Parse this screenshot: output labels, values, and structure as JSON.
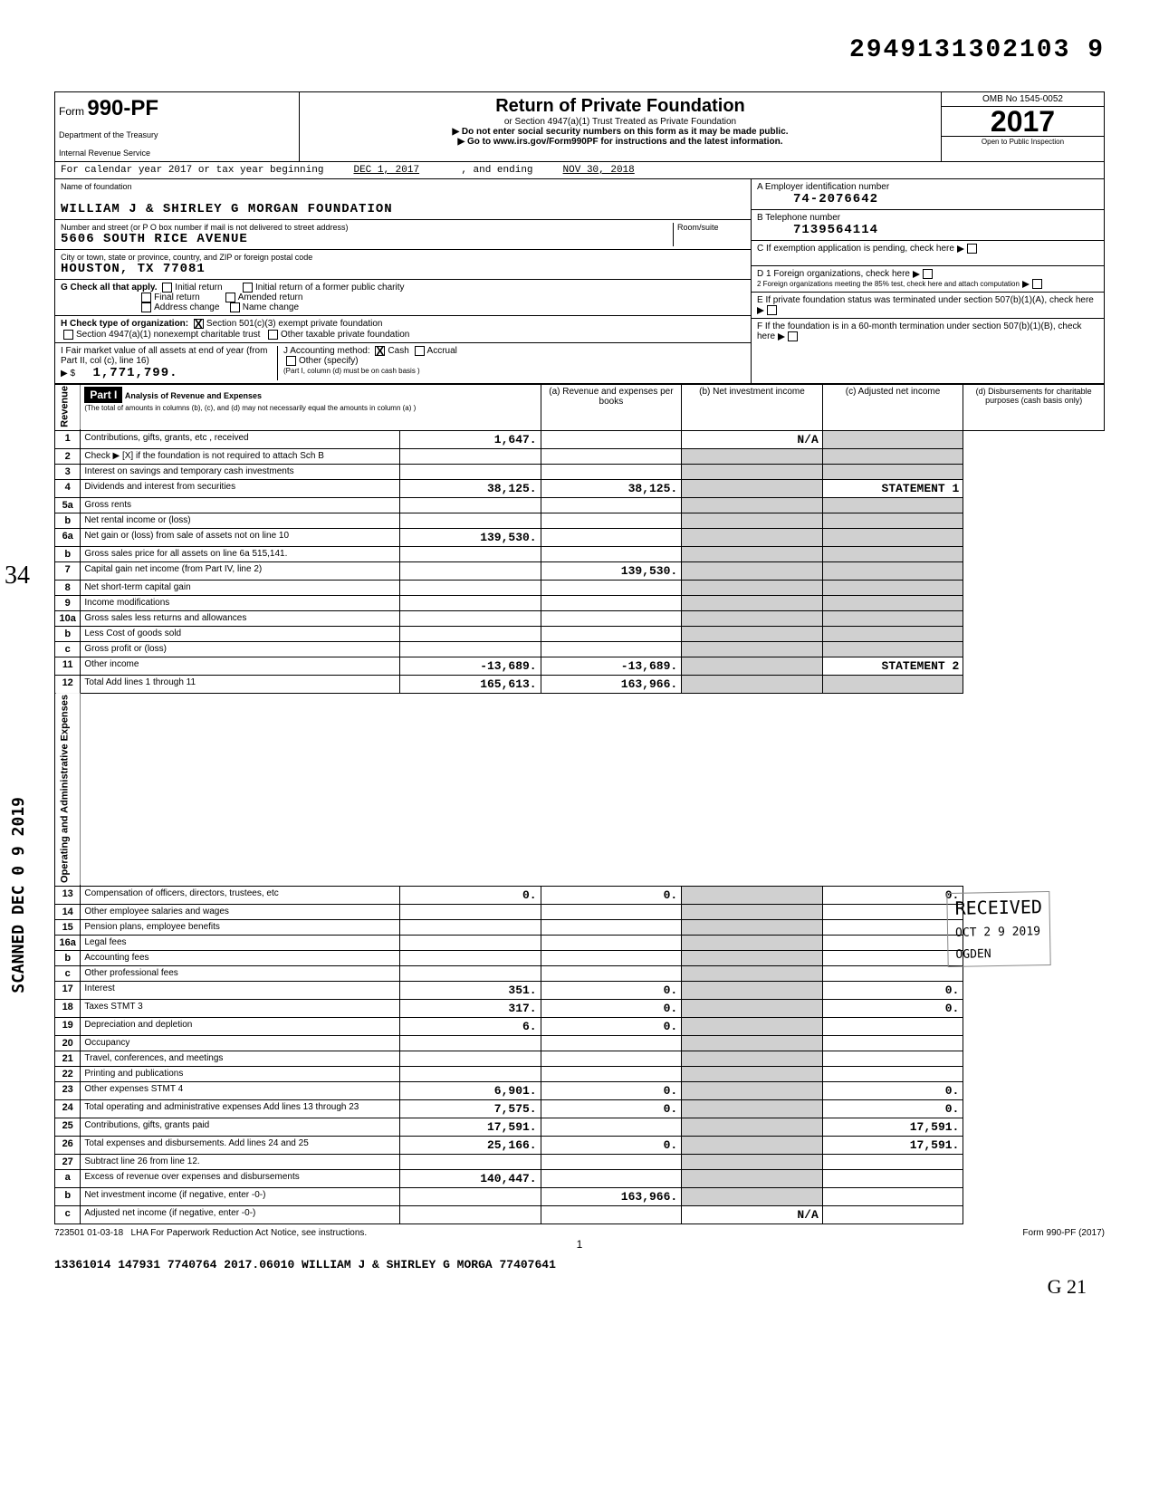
{
  "doc_number": "2949131302103 9",
  "header": {
    "form_prefix": "Form",
    "form_number": "990-PF",
    "dept1": "Department of the Treasury",
    "dept2": "Internal Revenue Service",
    "title": "Return of Private Foundation",
    "sub1": "or Section 4947(a)(1) Trust Treated as Private Foundation",
    "sub2": "▶ Do not enter social security numbers on this form as it may be made public.",
    "sub3": "▶ Go to www.irs.gov/Form990PF for instructions and the latest information.",
    "omb": "OMB No 1545-0052",
    "year": "2017",
    "inspection": "Open to Public Inspection"
  },
  "cal_year": {
    "prefix": "For calendar year 2017 or tax year beginning",
    "begin": "DEC 1, 2017",
    "mid": ", and ending",
    "end": "NOV 30, 2018"
  },
  "info": {
    "name_label": "Name of foundation",
    "name": "WILLIAM J & SHIRLEY G MORGAN FOUNDATION",
    "addr_label": "Number and street (or P O box number if mail is not delivered to street address)",
    "addr": "5606 SOUTH RICE AVENUE",
    "room_label": "Room/suite",
    "city_label": "City or town, state or province, country, and ZIP or foreign postal code",
    "city": "HOUSTON, TX   77081",
    "ein_label": "A Employer identification number",
    "ein": "74-2076642",
    "phone_label": "B Telephone number",
    "phone": "7139564114",
    "c_label": "C If exemption application is pending, check here",
    "d1_label": "D 1 Foreign organizations, check here",
    "d2_label": "2 Foreign organizations meeting the 85% test, check here and attach computation",
    "e_label": "E If private foundation status was terminated under section 507(b)(1)(A), check here",
    "f_label": "F If the foundation is in a 60-month termination under section 507(b)(1)(B), check here"
  },
  "g": {
    "label": "G Check all that apply.",
    "opts": [
      "Initial return",
      "Final return",
      "Address change",
      "Initial return of a former public charity",
      "Amended return",
      "Name change"
    ]
  },
  "h": {
    "label": "H Check type of organization:",
    "opt1": "Section 501(c)(3) exempt private foundation",
    "opt2": "Section 4947(a)(1) nonexempt charitable trust",
    "opt3": "Other taxable private foundation"
  },
  "i": {
    "label": "I Fair market value of all assets at end of year (from Part II, col (c), line 16)",
    "value": "1,771,799.",
    "j_label": "J Accounting method:",
    "j_opts": [
      "Cash",
      "Accrual",
      "Other (specify)"
    ],
    "j_note": "(Part I, column (d) must be on cash basis )"
  },
  "part1": {
    "label": "Part I",
    "title": "Analysis of Revenue and Expenses",
    "note": "(The total of amounts in columns (b), (c), and (d) may not necessarily equal the amounts in column (a) )",
    "col_a": "(a) Revenue and expenses per books",
    "col_b": "(b) Net investment income",
    "col_c": "(c) Adjusted net income",
    "col_d": "(d) Disbursements for charitable purposes (cash basis only)"
  },
  "rows": [
    {
      "n": "1",
      "desc": "Contributions, gifts, grants, etc , received",
      "a": "1,647.",
      "b": "",
      "c": "N/A",
      "d": ""
    },
    {
      "n": "2",
      "desc": "Check ▶ [X] if the foundation is not required to attach Sch B",
      "a": "",
      "b": "",
      "c": "",
      "d": ""
    },
    {
      "n": "3",
      "desc": "Interest on savings and temporary cash investments",
      "a": "",
      "b": "",
      "c": "",
      "d": ""
    },
    {
      "n": "4",
      "desc": "Dividends and interest from securities",
      "a": "38,125.",
      "b": "38,125.",
      "c": "",
      "d": "STATEMENT 1"
    },
    {
      "n": "5a",
      "desc": "Gross rents",
      "a": "",
      "b": "",
      "c": "",
      "d": ""
    },
    {
      "n": "b",
      "desc": "Net rental income or (loss)",
      "a": "",
      "b": "",
      "c": "",
      "d": ""
    },
    {
      "n": "6a",
      "desc": "Net gain or (loss) from sale of assets not on line 10",
      "a": "139,530.",
      "b": "",
      "c": "",
      "d": ""
    },
    {
      "n": "b",
      "desc": "Gross sales price for all assets on line 6a       515,141.",
      "a": "",
      "b": "",
      "c": "",
      "d": ""
    },
    {
      "n": "7",
      "desc": "Capital gain net income (from Part IV, line 2)",
      "a": "",
      "b": "139,530.",
      "c": "",
      "d": ""
    },
    {
      "n": "8",
      "desc": "Net short-term capital gain",
      "a": "",
      "b": "",
      "c": "",
      "d": ""
    },
    {
      "n": "9",
      "desc": "Income modifications",
      "a": "",
      "b": "",
      "c": "",
      "d": ""
    },
    {
      "n": "10a",
      "desc": "Gross sales less returns and allowances",
      "a": "",
      "b": "",
      "c": "",
      "d": ""
    },
    {
      "n": "b",
      "desc": "Less Cost of goods sold",
      "a": "",
      "b": "",
      "c": "",
      "d": ""
    },
    {
      "n": "c",
      "desc": "Gross profit or (loss)",
      "a": "",
      "b": "",
      "c": "",
      "d": ""
    },
    {
      "n": "11",
      "desc": "Other income",
      "a": "-13,689.",
      "b": "-13,689.",
      "c": "",
      "d": "STATEMENT 2"
    },
    {
      "n": "12",
      "desc": "Total Add lines 1 through 11",
      "a": "165,613.",
      "b": "163,966.",
      "c": "",
      "d": ""
    },
    {
      "n": "13",
      "desc": "Compensation of officers, directors, trustees, etc",
      "a": "0.",
      "b": "0.",
      "c": "",
      "d": "0."
    },
    {
      "n": "14",
      "desc": "Other employee salaries and wages",
      "a": "",
      "b": "",
      "c": "",
      "d": ""
    },
    {
      "n": "15",
      "desc": "Pension plans, employee benefits",
      "a": "",
      "b": "",
      "c": "",
      "d": ""
    },
    {
      "n": "16a",
      "desc": "Legal fees",
      "a": "",
      "b": "",
      "c": "",
      "d": ""
    },
    {
      "n": "b",
      "desc": "Accounting fees",
      "a": "",
      "b": "",
      "c": "",
      "d": ""
    },
    {
      "n": "c",
      "desc": "Other professional fees",
      "a": "",
      "b": "",
      "c": "",
      "d": ""
    },
    {
      "n": "17",
      "desc": "Interest",
      "a": "351.",
      "b": "0.",
      "c": "",
      "d": "0."
    },
    {
      "n": "18",
      "desc": "Taxes                    STMT 3",
      "a": "317.",
      "b": "0.",
      "c": "",
      "d": "0."
    },
    {
      "n": "19",
      "desc": "Depreciation and depletion",
      "a": "6.",
      "b": "0.",
      "c": "",
      "d": ""
    },
    {
      "n": "20",
      "desc": "Occupancy",
      "a": "",
      "b": "",
      "c": "",
      "d": ""
    },
    {
      "n": "21",
      "desc": "Travel, conferences, and meetings",
      "a": "",
      "b": "",
      "c": "",
      "d": ""
    },
    {
      "n": "22",
      "desc": "Printing and publications",
      "a": "",
      "b": "",
      "c": "",
      "d": ""
    },
    {
      "n": "23",
      "desc": "Other expenses           STMT 4",
      "a": "6,901.",
      "b": "0.",
      "c": "",
      "d": "0."
    },
    {
      "n": "24",
      "desc": "Total operating and administrative expenses Add lines 13 through 23",
      "a": "7,575.",
      "b": "0.",
      "c": "",
      "d": "0."
    },
    {
      "n": "25",
      "desc": "Contributions, gifts, grants paid",
      "a": "17,591.",
      "b": "",
      "c": "",
      "d": "17,591."
    },
    {
      "n": "26",
      "desc": "Total expenses and disbursements. Add lines 24 and 25",
      "a": "25,166.",
      "b": "0.",
      "c": "",
      "d": "17,591."
    },
    {
      "n": "27",
      "desc": "Subtract line 26 from line 12.",
      "a": "",
      "b": "",
      "c": "",
      "d": ""
    },
    {
      "n": "a",
      "desc": "Excess of revenue over expenses and disbursements",
      "a": "140,447.",
      "b": "",
      "c": "",
      "d": ""
    },
    {
      "n": "b",
      "desc": "Net investment income (if negative, enter -0-)",
      "a": "",
      "b": "163,966.",
      "c": "",
      "d": ""
    },
    {
      "n": "c",
      "desc": "Adjusted net income (if negative, enter -0-)",
      "a": "",
      "b": "",
      "c": "N/A",
      "d": ""
    }
  ],
  "side_labels": {
    "revenue": "Revenue",
    "expenses": "Operating and Administrative Expenses"
  },
  "footer": {
    "code": "723501 01-03-18",
    "lha": "LHA For Paperwork Reduction Act Notice, see instructions.",
    "page": "1",
    "form": "Form 990-PF (2017)",
    "line2": "13361014 147931 7740764        2017.06010 WILLIAM J & SHIRLEY G MORGA 77407641"
  },
  "stamps": {
    "scanned": "SCANNED DEC 0 9 2019",
    "received": "RECEIVED",
    "received_date": "OCT 2 9 2019",
    "ogden": "OGDEN",
    "handwrite1": "34",
    "handwrite2": "G 21"
  }
}
